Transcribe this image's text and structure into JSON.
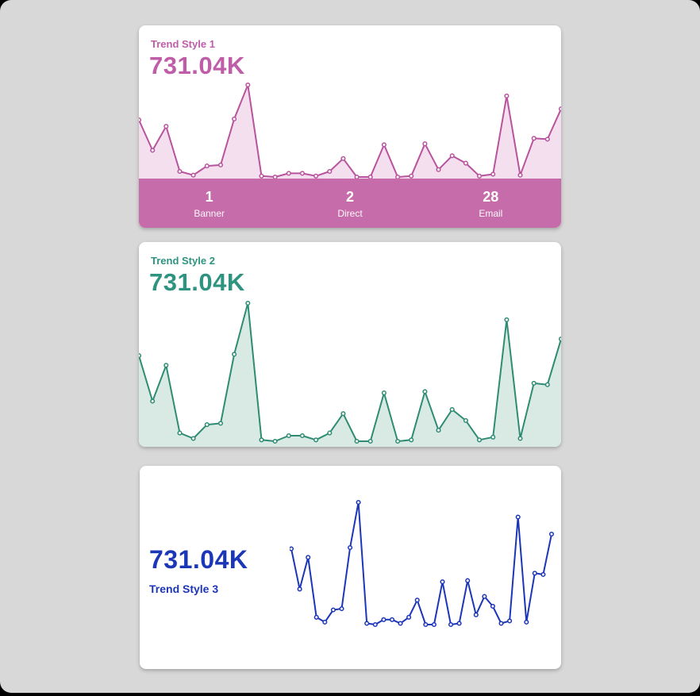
{
  "page": {
    "background_color": "#d8d8d8",
    "outer_color": "#000000"
  },
  "cards": [
    {
      "title": "Trend Style 1",
      "value": "731.04K",
      "accent_color": "#bf5da8",
      "line_color": "#b8539e",
      "fill_color": "#f4dfee",
      "bar_color": "#c76cab",
      "stats": [
        {
          "value": "1",
          "label": "Banner"
        },
        {
          "value": "2",
          "label": "Direct"
        },
        {
          "value": "28",
          "label": "Email"
        }
      ]
    },
    {
      "title": "Trend Style 2",
      "value": "731.04K",
      "accent_color": "#2e9480",
      "line_color": "#2e8c73",
      "fill_color": "#d9eae4"
    },
    {
      "title": "Trend Style 3",
      "value": "731.04K",
      "accent_color": "#1c36b8",
      "line_color": "#1c36b8"
    }
  ],
  "chart_data": [
    {
      "type": "area",
      "title": "Trend Style 1",
      "headline_value": "731.04K",
      "xlabel": "",
      "ylabel": "",
      "axes_hidden": true,
      "grid": false,
      "markers": true,
      "values_relative_pct": [
        62,
        29,
        55,
        6,
        2,
        12,
        13,
        63,
        100,
        1,
        0,
        4,
        4,
        1,
        6,
        20,
        0,
        0,
        35,
        0,
        1,
        36,
        8,
        23,
        15,
        1,
        3,
        88,
        2,
        42,
        41,
        74
      ],
      "line_color": "#b8539e",
      "fill_color": "#f4dfee",
      "footer_stats": [
        {
          "value": 1,
          "label": "Banner"
        },
        {
          "value": 2,
          "label": "Direct"
        },
        {
          "value": 28,
          "label": "Email"
        }
      ]
    },
    {
      "type": "area",
      "title": "Trend Style 2",
      "headline_value": "731.04K",
      "xlabel": "",
      "ylabel": "",
      "axes_hidden": true,
      "grid": false,
      "markers": true,
      "values_relative_pct": [
        62,
        29,
        55,
        6,
        2,
        12,
        13,
        63,
        100,
        1,
        0,
        4,
        4,
        1,
        6,
        20,
        0,
        0,
        35,
        0,
        1,
        36,
        8,
        23,
        15,
        1,
        3,
        88,
        2,
        42,
        41,
        74
      ],
      "line_color": "#2e8c73",
      "fill_color": "#d9eae4"
    },
    {
      "type": "line",
      "title": "Trend Style 3",
      "headline_value": "731.04K",
      "xlabel": "",
      "ylabel": "",
      "axes_hidden": true,
      "grid": false,
      "markers": true,
      "values_relative_pct": [
        62,
        29,
        55,
        6,
        2,
        12,
        13,
        63,
        100,
        1,
        0,
        4,
        4,
        1,
        6,
        20,
        0,
        0,
        35,
        0,
        1,
        36,
        8,
        23,
        15,
        1,
        3,
        88,
        2,
        42,
        41,
        74
      ],
      "line_color": "#1c36b8"
    }
  ]
}
